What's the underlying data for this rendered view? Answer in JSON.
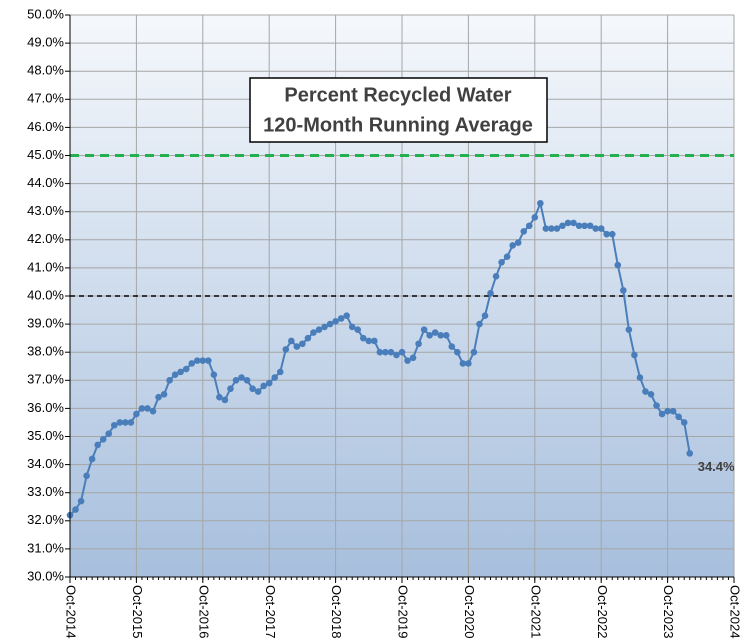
{
  "chart_data": {
    "type": "line",
    "title": "Percent Recycled Water",
    "subtitle": "120-Month Running Average",
    "x": [
      "2014-10",
      "2014-11",
      "2014-12",
      "2015-01",
      "2015-02",
      "2015-03",
      "2015-04",
      "2015-05",
      "2015-06",
      "2015-07",
      "2015-08",
      "2015-09",
      "2015-10",
      "2015-11",
      "2015-12",
      "2016-01",
      "2016-02",
      "2016-03",
      "2016-04",
      "2016-05",
      "2016-06",
      "2016-07",
      "2016-08",
      "2016-09",
      "2016-10",
      "2016-11",
      "2016-12",
      "2017-01",
      "2017-02",
      "2017-03",
      "2017-04",
      "2017-05",
      "2017-06",
      "2017-07",
      "2017-08",
      "2017-09",
      "2017-10",
      "2017-11",
      "2017-12",
      "2018-01",
      "2018-02",
      "2018-03",
      "2018-04",
      "2018-05",
      "2018-06",
      "2018-07",
      "2018-08",
      "2018-09",
      "2018-10",
      "2018-11",
      "2018-12",
      "2019-01",
      "2019-02",
      "2019-03",
      "2019-04",
      "2019-05",
      "2019-06",
      "2019-07",
      "2019-08",
      "2019-09",
      "2019-10",
      "2019-11",
      "2019-12",
      "2020-01",
      "2020-02",
      "2020-03",
      "2020-04",
      "2020-05",
      "2020-06",
      "2020-07",
      "2020-08",
      "2020-09",
      "2020-10",
      "2020-11",
      "2020-12",
      "2021-01",
      "2021-02",
      "2021-03",
      "2021-04",
      "2021-05",
      "2021-06",
      "2021-07",
      "2021-08",
      "2021-09",
      "2021-10",
      "2021-11",
      "2021-12",
      "2022-01",
      "2022-02",
      "2022-03",
      "2022-04",
      "2022-05",
      "2022-06",
      "2022-07",
      "2022-08",
      "2022-09",
      "2022-10",
      "2022-11",
      "2022-12",
      "2023-01",
      "2023-02",
      "2023-03",
      "2023-04",
      "2023-05",
      "2023-06",
      "2023-07",
      "2023-08",
      "2023-09",
      "2023-10",
      "2023-11",
      "2023-12",
      "2024-01",
      "2024-02"
    ],
    "values": [
      32.2,
      32.4,
      32.7,
      33.6,
      34.2,
      34.7,
      34.9,
      35.1,
      35.4,
      35.5,
      35.5,
      35.5,
      35.8,
      36.0,
      36.0,
      35.9,
      36.4,
      36.5,
      37.0,
      37.2,
      37.3,
      37.4,
      37.6,
      37.7,
      37.7,
      37.7,
      37.2,
      36.4,
      36.3,
      36.7,
      37.0,
      37.1,
      37.0,
      36.7,
      36.6,
      36.8,
      36.9,
      37.1,
      37.3,
      38.1,
      38.4,
      38.2,
      38.3,
      38.5,
      38.7,
      38.8,
      38.9,
      39.0,
      39.1,
      39.2,
      39.3,
      38.9,
      38.8,
      38.5,
      38.4,
      38.4,
      38.0,
      38.0,
      38.0,
      37.9,
      38.0,
      37.7,
      37.8,
      38.3,
      38.8,
      38.6,
      38.7,
      38.6,
      38.6,
      38.2,
      38.0,
      37.6,
      37.6,
      38.0,
      39.0,
      39.3,
      40.1,
      40.7,
      41.2,
      41.4,
      41.8,
      41.9,
      42.3,
      42.5,
      42.8,
      43.3,
      42.4,
      42.4,
      42.4,
      42.5,
      42.6,
      42.6,
      42.5,
      42.5,
      42.5,
      42.4,
      42.4,
      42.2,
      42.2,
      41.1,
      40.2,
      38.8,
      37.9,
      37.1,
      36.6,
      36.5,
      36.1,
      35.8,
      35.9,
      35.9,
      35.7,
      35.5,
      34.4
    ],
    "value_labels": [
      null,
      null,
      null,
      null,
      null,
      null,
      null,
      null,
      null,
      null,
      null,
      null,
      null,
      null,
      null,
      null,
      null,
      null,
      null,
      null,
      null,
      null,
      null,
      null,
      null,
      null,
      null,
      null,
      null,
      null,
      null,
      null,
      null,
      null,
      null,
      null,
      null,
      null,
      null,
      null,
      null,
      null,
      null,
      null,
      null,
      null,
      null,
      null,
      null,
      null,
      null,
      null,
      null,
      null,
      null,
      null,
      null,
      null,
      null,
      null,
      null,
      null,
      null,
      null,
      null,
      null,
      null,
      null,
      null,
      null,
      null,
      null,
      null,
      null,
      null,
      null,
      null,
      null,
      null,
      null,
      null,
      null,
      null,
      null,
      null,
      null,
      null,
      null,
      null,
      null,
      null,
      null,
      null,
      null,
      null,
      null,
      null,
      null,
      null,
      null,
      null,
      null,
      null,
      null,
      null,
      null,
      null,
      null,
      null,
      null,
      null,
      null,
      "34.4%"
    ],
    "color": "#4a7ebb",
    "xlim": [
      "2014-10",
      "2024-10"
    ],
    "xticks": [
      {
        "value": "2014-10",
        "label": "Oct-2014"
      },
      {
        "value": "2015-10",
        "label": "Oct-2015"
      },
      {
        "value": "2016-10",
        "label": "Oct-2016"
      },
      {
        "value": "2017-10",
        "label": "Oct-2017"
      },
      {
        "value": "2018-10",
        "label": "Oct-2018"
      },
      {
        "value": "2019-10",
        "label": "Oct-2019"
      },
      {
        "value": "2020-10",
        "label": "Oct-2020"
      },
      {
        "value": "2021-10",
        "label": "Oct-2021"
      },
      {
        "value": "2022-10",
        "label": "Oct-2022"
      },
      {
        "value": "2023-10",
        "label": "Oct-2023"
      },
      {
        "value": "2024-10",
        "label": "Oct-2024"
      }
    ],
    "ylim": [
      30,
      50
    ],
    "yticks": [
      {
        "value": 30,
        "label": "30.0%"
      },
      {
        "value": 31,
        "label": "31.0%"
      },
      {
        "value": 32,
        "label": "32.0%"
      },
      {
        "value": 33,
        "label": "33.0%"
      },
      {
        "value": 34,
        "label": "34.0%"
      },
      {
        "value": 35,
        "label": "35.0%"
      },
      {
        "value": 36,
        "label": "36.0%"
      },
      {
        "value": 37,
        "label": "37.0%"
      },
      {
        "value": 38,
        "label": "38.0%"
      },
      {
        "value": 39,
        "label": "39.0%"
      },
      {
        "value": 40,
        "label": "40.0%"
      },
      {
        "value": 41,
        "label": "41.0%"
      },
      {
        "value": 42,
        "label": "42.0%"
      },
      {
        "value": 43,
        "label": "43.0%"
      },
      {
        "value": 44,
        "label": "44.0%"
      },
      {
        "value": 45,
        "label": "45.0%"
      },
      {
        "value": 46,
        "label": "46.0%"
      },
      {
        "value": 47,
        "label": "47.0%"
      },
      {
        "value": 48,
        "label": "48.0%"
      },
      {
        "value": 49,
        "label": "49.0%"
      },
      {
        "value": 50,
        "label": "50.0%"
      }
    ],
    "grid": true,
    "reference_lines": [
      {
        "value": 45,
        "color": "#22b14c"
      },
      {
        "value": 40,
        "color": "#000000"
      }
    ]
  }
}
